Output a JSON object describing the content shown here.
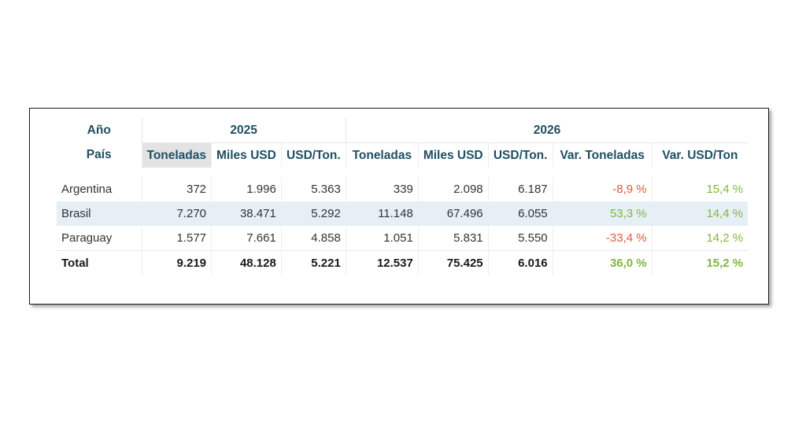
{
  "table": {
    "year_label": "Año",
    "country_label": "País",
    "years": [
      "2025",
      "2026"
    ],
    "columns": [
      "Toneladas",
      "Miles USD",
      "USD/Ton.",
      "Toneladas",
      "Miles USD",
      "USD/Ton.",
      "Var. Toneladas",
      "Var. USD/Ton"
    ],
    "rows": [
      {
        "pais": "Argentina",
        "values": [
          "372",
          "1.996",
          "5.363",
          "339",
          "2.098",
          "6.187",
          "-8,9 %",
          "15,4 %"
        ]
      },
      {
        "pais": "Brasil",
        "values": [
          "7.270",
          "38.471",
          "5.292",
          "11.148",
          "67.496",
          "6.055",
          "53,3 %",
          "14,4 %"
        ]
      },
      {
        "pais": "Paraguay",
        "values": [
          "1.577",
          "7.661",
          "4.858",
          "1.051",
          "5.831",
          "5.550",
          "-33,4 %",
          "14,2 %"
        ]
      }
    ],
    "total": {
      "pais": "Total",
      "values": [
        "9.219",
        "48.128",
        "5.221",
        "12.537",
        "75.425",
        "6.016",
        "36,0 %",
        "15,2 %"
      ]
    }
  },
  "colors": {
    "header_text": "#1f4f63",
    "negative": "#e05a3a",
    "positive": "#7fb83a",
    "alt_row": "#e6eff5",
    "sorted_header": "#e3e3e3"
  }
}
